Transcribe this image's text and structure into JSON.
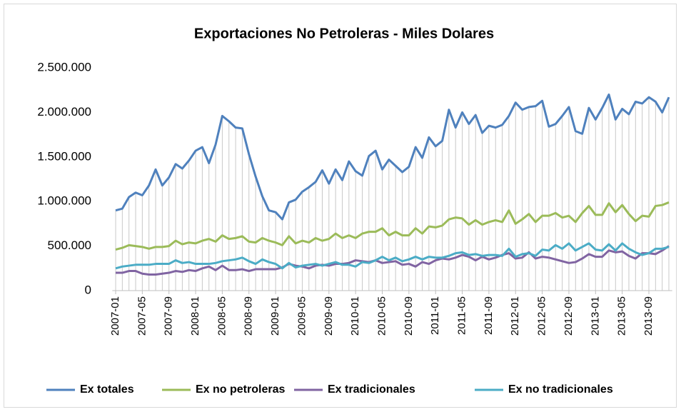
{
  "chart_data": {
    "type": "line",
    "title": "Exportaciones No Petroleras - Miles Dolares",
    "categories": [
      "2007-01",
      null,
      null,
      null,
      "2007-05",
      null,
      null,
      null,
      "2007-09",
      null,
      null,
      null,
      "2008-01",
      null,
      null,
      null,
      "2008-05",
      null,
      null,
      null,
      "2008-09",
      null,
      null,
      null,
      "2009-01",
      null,
      null,
      null,
      "2009-05",
      null,
      null,
      null,
      "2009-09",
      null,
      null,
      null,
      "2010-01",
      null,
      null,
      null,
      "2010-05",
      null,
      null,
      null,
      "2010-09",
      null,
      null,
      null,
      "2011-01",
      null,
      null,
      null,
      "2011-05",
      null,
      null,
      null,
      "2011-09",
      null,
      null,
      null,
      "2012-01",
      null,
      null,
      null,
      "2012-05",
      null,
      null,
      null,
      "2012-09",
      null,
      null,
      null,
      "2013-01",
      null,
      null,
      null,
      "2013-05",
      null,
      null,
      null,
      "2013-09",
      null,
      null,
      null
    ],
    "series": [
      {
        "name": "Ex totales",
        "color": "#4f81bd",
        "values": [
          900000,
          920000,
          1050000,
          1100000,
          1070000,
          1180000,
          1360000,
          1180000,
          1270000,
          1420000,
          1370000,
          1460000,
          1570000,
          1610000,
          1430000,
          1640000,
          1960000,
          1900000,
          1830000,
          1820000,
          1530000,
          1280000,
          1060000,
          900000,
          880000,
          800000,
          990000,
          1020000,
          1110000,
          1160000,
          1220000,
          1350000,
          1200000,
          1360000,
          1240000,
          1450000,
          1340000,
          1290000,
          1510000,
          1570000,
          1360000,
          1470000,
          1400000,
          1330000,
          1390000,
          1610000,
          1490000,
          1720000,
          1620000,
          1680000,
          2030000,
          1830000,
          2000000,
          1870000,
          1970000,
          1770000,
          1850000,
          1830000,
          1860000,
          1960000,
          2110000,
          2030000,
          2060000,
          2070000,
          2130000,
          1840000,
          1870000,
          1960000,
          2060000,
          1790000,
          1760000,
          2050000,
          1920000,
          2050000,
          2200000,
          1920000,
          2040000,
          1980000,
          2120000,
          2100000,
          2170000,
          2120000,
          2000000,
          2170000
        ]
      },
      {
        "name": "Ex no petroleras",
        "color": "#9bbb59",
        "values": [
          460000,
          480000,
          510000,
          500000,
          490000,
          470000,
          490000,
          490000,
          500000,
          560000,
          520000,
          540000,
          530000,
          560000,
          580000,
          550000,
          620000,
          580000,
          590000,
          610000,
          550000,
          540000,
          590000,
          560000,
          540000,
          510000,
          610000,
          530000,
          560000,
          540000,
          590000,
          560000,
          580000,
          640000,
          590000,
          620000,
          590000,
          640000,
          660000,
          660000,
          700000,
          620000,
          660000,
          620000,
          620000,
          700000,
          640000,
          720000,
          710000,
          730000,
          800000,
          820000,
          810000,
          740000,
          790000,
          740000,
          770000,
          790000,
          770000,
          900000,
          750000,
          800000,
          860000,
          770000,
          840000,
          840000,
          870000,
          820000,
          840000,
          770000,
          870000,
          950000,
          850000,
          850000,
          980000,
          880000,
          960000,
          860000,
          780000,
          840000,
          830000,
          950000,
          960000,
          990000
        ]
      },
      {
        "name": "Ex tradicionales",
        "color": "#8064a2",
        "values": [
          200000,
          200000,
          220000,
          220000,
          190000,
          180000,
          180000,
          190000,
          200000,
          220000,
          210000,
          230000,
          220000,
          250000,
          270000,
          230000,
          280000,
          230000,
          230000,
          240000,
          220000,
          240000,
          240000,
          240000,
          240000,
          260000,
          300000,
          280000,
          270000,
          250000,
          280000,
          290000,
          280000,
          300000,
          300000,
          310000,
          340000,
          330000,
          320000,
          340000,
          310000,
          320000,
          330000,
          290000,
          300000,
          270000,
          320000,
          300000,
          340000,
          360000,
          350000,
          370000,
          400000,
          380000,
          340000,
          380000,
          350000,
          370000,
          400000,
          420000,
          360000,
          370000,
          430000,
          360000,
          380000,
          370000,
          350000,
          330000,
          310000,
          320000,
          360000,
          410000,
          380000,
          380000,
          450000,
          430000,
          440000,
          390000,
          360000,
          420000,
          420000,
          410000,
          450000,
          500000
        ]
      },
      {
        "name": "Ex no tradicionales",
        "color": "#4bacc6",
        "values": [
          250000,
          270000,
          280000,
          290000,
          290000,
          290000,
          300000,
          300000,
          300000,
          340000,
          310000,
          320000,
          300000,
          300000,
          300000,
          310000,
          330000,
          340000,
          350000,
          370000,
          330000,
          300000,
          350000,
          320000,
          300000,
          250000,
          310000,
          260000,
          280000,
          290000,
          300000,
          280000,
          300000,
          320000,
          290000,
          290000,
          270000,
          320000,
          310000,
          340000,
          380000,
          340000,
          370000,
          330000,
          350000,
          380000,
          350000,
          380000,
          370000,
          370000,
          390000,
          420000,
          430000,
          400000,
          410000,
          390000,
          400000,
          400000,
          390000,
          470000,
          380000,
          410000,
          420000,
          390000,
          460000,
          450000,
          510000,
          470000,
          530000,
          450000,
          490000,
          530000,
          460000,
          450000,
          520000,
          450000,
          530000,
          470000,
          430000,
          400000,
          420000,
          470000,
          470000,
          490000
        ]
      }
    ],
    "ylim": [
      0,
      2500000
    ],
    "yticks": [
      0,
      {
        "value": 500000,
        "label": "500.000"
      },
      {
        "value": 1000000,
        "label": "1.000.000"
      },
      {
        "value": 1500000,
        "label": "1.500.000"
      },
      {
        "value": 2000000,
        "label": "2.000.000"
      },
      {
        "value": 2500000,
        "label": "2.500.000"
      }
    ],
    "drop_lines": true,
    "legend": "bottom"
  }
}
